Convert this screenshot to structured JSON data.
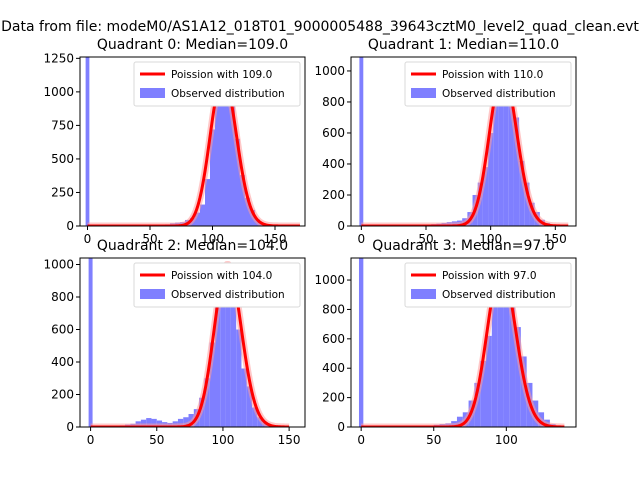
{
  "figure_title": "Data from file: modeM0/AS1A12_018T01_9000005488_39643cztM0_level2_quad_clean.evt",
  "colors": {
    "hist": "#7f7fff",
    "fit": "#ff0000",
    "legend_bg": "#ffffff"
  },
  "chart_data": [
    {
      "type": "bar",
      "title": "Quadrant 0: Median=109.0",
      "median": 109.0,
      "xlim": [
        -6,
        174
      ],
      "ylim": [
        0,
        1260
      ],
      "xticks": [
        0,
        50,
        100,
        150
      ],
      "yticks": [
        0,
        250,
        500,
        750,
        1000,
        1250
      ],
      "bin_width": 4,
      "spike": {
        "x": 0,
        "value": 1260
      },
      "bins": [
        [
          60,
          10
        ],
        [
          64,
          12
        ],
        [
          68,
          20
        ],
        [
          72,
          25
        ],
        [
          76,
          28
        ],
        [
          80,
          45
        ],
        [
          84,
          60
        ],
        [
          88,
          100
        ],
        [
          92,
          160
        ],
        [
          96,
          350
        ],
        [
          100,
          720
        ],
        [
          104,
          1010
        ],
        [
          108,
          1100
        ],
        [
          112,
          1100
        ],
        [
          116,
          1120
        ],
        [
          120,
          650
        ],
        [
          124,
          380
        ],
        [
          128,
          210
        ],
        [
          132,
          120
        ],
        [
          136,
          50
        ],
        [
          140,
          20
        ],
        [
          144,
          10
        ],
        [
          148,
          5
        ]
      ],
      "legend": {
        "fit_label": "Poission with 109.0",
        "hist_label": "Observed distribution"
      },
      "fit_lambda": 109.0,
      "fit_range": [
        0,
        170
      ]
    },
    {
      "type": "bar",
      "title": "Quadrant 1: Median=110.0",
      "median": 110.0,
      "xlim": [
        -8,
        166
      ],
      "ylim": [
        0,
        1090
      ],
      "xticks": [
        0,
        50,
        100,
        150
      ],
      "yticks": [
        0,
        200,
        400,
        600,
        800,
        1000
      ],
      "bin_width": 4,
      "spike": {
        "x": 0,
        "value": 1090
      },
      "bins": [
        [
          56,
          12
        ],
        [
          60,
          15
        ],
        [
          64,
          20
        ],
        [
          68,
          25
        ],
        [
          72,
          30
        ],
        [
          76,
          35
        ],
        [
          80,
          50
        ],
        [
          84,
          90
        ],
        [
          88,
          200
        ],
        [
          92,
          280
        ],
        [
          96,
          380
        ],
        [
          100,
          600
        ],
        [
          104,
          870
        ],
        [
          108,
          900
        ],
        [
          112,
          1000
        ],
        [
          116,
          820
        ],
        [
          120,
          700
        ],
        [
          124,
          420
        ],
        [
          128,
          280
        ],
        [
          132,
          150
        ],
        [
          136,
          90
        ],
        [
          140,
          40
        ],
        [
          144,
          20
        ],
        [
          148,
          8
        ]
      ],
      "legend": {
        "fit_label": "Poission with 110.0",
        "hist_label": "Observed distribution"
      },
      "fit_lambda": 110.0,
      "fit_range": [
        0,
        160
      ]
    },
    {
      "type": "bar",
      "title": "Quadrant 2: Median=104.0",
      "median": 104.0,
      "xlim": [
        -8,
        162
      ],
      "ylim": [
        0,
        1040
      ],
      "xticks": [
        0,
        50,
        100,
        150
      ],
      "yticks": [
        0,
        200,
        400,
        600,
        800,
        1000
      ],
      "bin_width": 4,
      "spike": {
        "x": 0,
        "value": 1040
      },
      "bins": [
        [
          20,
          5
        ],
        [
          24,
          10
        ],
        [
          28,
          15
        ],
        [
          32,
          20
        ],
        [
          36,
          35
        ],
        [
          40,
          45
        ],
        [
          44,
          55
        ],
        [
          48,
          50
        ],
        [
          52,
          40
        ],
        [
          56,
          30
        ],
        [
          60,
          25
        ],
        [
          64,
          35
        ],
        [
          68,
          50
        ],
        [
          72,
          60
        ],
        [
          76,
          80
        ],
        [
          80,
          110
        ],
        [
          84,
          180
        ],
        [
          88,
          300
        ],
        [
          92,
          520
        ],
        [
          96,
          780
        ],
        [
          100,
          920
        ],
        [
          104,
          1000
        ],
        [
          108,
          870
        ],
        [
          112,
          600
        ],
        [
          116,
          360
        ],
        [
          120,
          250
        ],
        [
          124,
          120
        ],
        [
          128,
          60
        ],
        [
          132,
          30
        ],
        [
          136,
          10
        ]
      ],
      "legend": {
        "fit_label": "Poission with 104.0",
        "hist_label": "Observed distribution"
      },
      "fit_lambda": 104.0,
      "fit_range": [
        0,
        150
      ]
    },
    {
      "type": "bar",
      "title": "Quadrant 3: Median=97.0",
      "median": 97.0,
      "xlim": [
        -7,
        148
      ],
      "ylim": [
        0,
        1150
      ],
      "xticks": [
        0,
        50,
        100
      ],
      "yticks": [
        0,
        200,
        400,
        600,
        800,
        1000
      ],
      "bin_width": 4,
      "spike": {
        "x": 0,
        "value": 1150
      },
      "bins": [
        [
          48,
          10
        ],
        [
          52,
          15
        ],
        [
          56,
          20
        ],
        [
          60,
          25
        ],
        [
          64,
          40
        ],
        [
          68,
          70
        ],
        [
          72,
          100
        ],
        [
          76,
          180
        ],
        [
          80,
          300
        ],
        [
          84,
          450
        ],
        [
          88,
          620
        ],
        [
          92,
          850
        ],
        [
          96,
          1000
        ],
        [
          100,
          1080
        ],
        [
          104,
          980
        ],
        [
          108,
          680
        ],
        [
          112,
          480
        ],
        [
          116,
          300
        ],
        [
          120,
          180
        ],
        [
          124,
          100
        ],
        [
          128,
          50
        ],
        [
          132,
          20
        ],
        [
          136,
          5
        ]
      ],
      "legend": {
        "fit_label": "Poission with 97.0",
        "hist_label": "Observed distribution"
      },
      "fit_lambda": 97.0,
      "fit_range": [
        0,
        140
      ]
    }
  ]
}
